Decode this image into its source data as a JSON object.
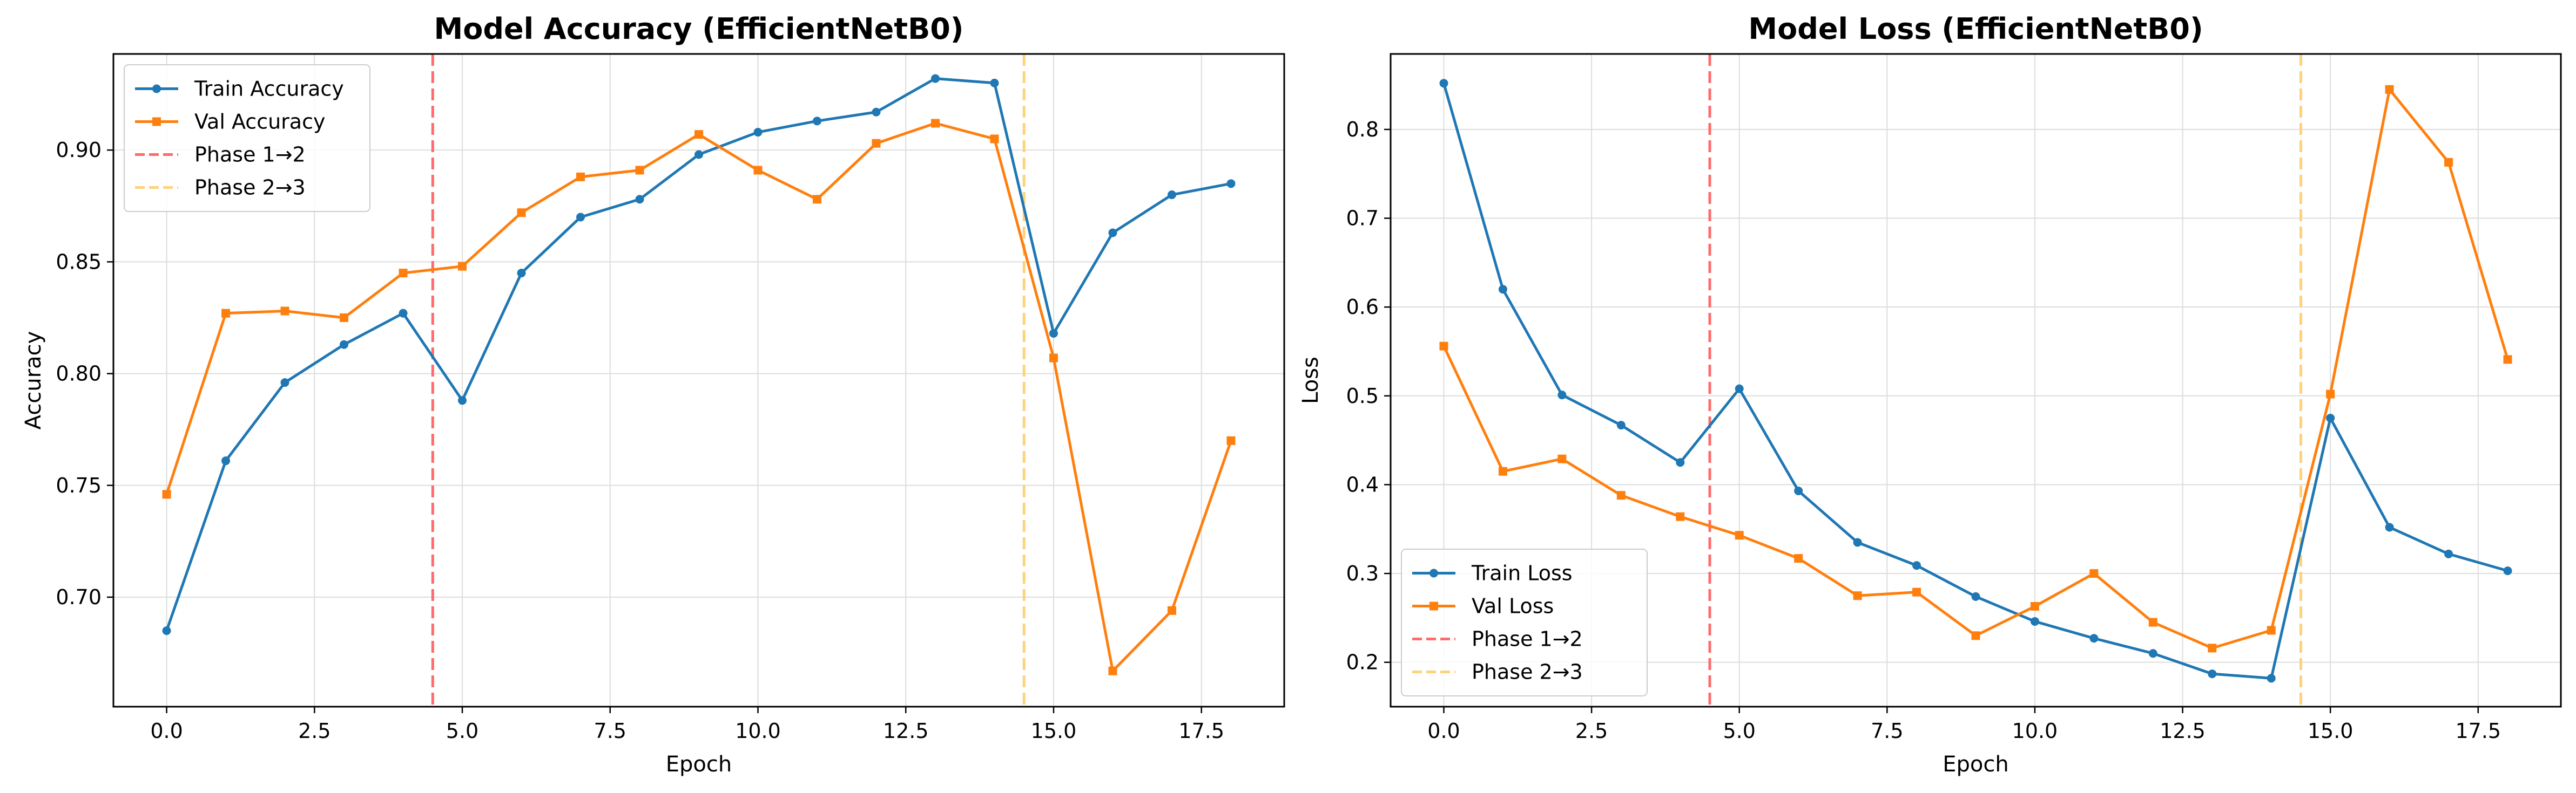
{
  "chart_data": [
    {
      "type": "line",
      "title": "Model Accuracy (EfficientNetB0)",
      "xlabel": "Epoch",
      "ylabel": "Accuracy",
      "xlim": [
        -0.9,
        18.9
      ],
      "ylim": [
        0.651,
        0.943
      ],
      "xticks": [
        0.0,
        2.5,
        5.0,
        7.5,
        10.0,
        12.5,
        15.0,
        17.5
      ],
      "xtick_labels": [
        "0.0",
        "2.5",
        "5.0",
        "7.5",
        "10.0",
        "12.5",
        "15.0",
        "17.5"
      ],
      "yticks": [
        0.7,
        0.75,
        0.8,
        0.85,
        0.9
      ],
      "ytick_labels": [
        "0.70",
        "0.75",
        "0.80",
        "0.85",
        "0.90"
      ],
      "grid": true,
      "legend_position": "upper left",
      "x": [
        0,
        1,
        2,
        3,
        4,
        5,
        6,
        7,
        8,
        9,
        10,
        11,
        12,
        13,
        14,
        15,
        16,
        17,
        18
      ],
      "series": [
        {
          "name": "Train Accuracy",
          "color": "#1f77b4",
          "marker": "circle",
          "values": [
            0.685,
            0.761,
            0.796,
            0.813,
            0.827,
            0.788,
            0.845,
            0.87,
            0.878,
            0.898,
            0.908,
            0.913,
            0.917,
            0.932,
            0.93,
            0.818,
            0.863,
            0.88,
            0.885
          ]
        },
        {
          "name": "Val Accuracy",
          "color": "#ff7f0e",
          "marker": "square",
          "values": [
            0.746,
            0.827,
            0.828,
            0.825,
            0.845,
            0.848,
            0.872,
            0.888,
            0.891,
            0.907,
            0.891,
            0.878,
            0.903,
            0.912,
            0.905,
            0.807,
            0.667,
            0.694,
            0.77
          ]
        }
      ],
      "vlines": [
        {
          "name": "Phase 1→2",
          "x": 4.5,
          "color": "#ff6b6b"
        },
        {
          "name": "Phase 2→3",
          "x": 14.5,
          "color": "#ffd27a"
        }
      ]
    },
    {
      "type": "line",
      "title": "Model Loss (EfficientNetB0)",
      "xlabel": "Epoch",
      "ylabel": "Loss",
      "xlim": [
        -0.9,
        18.9
      ],
      "ylim": [
        0.15,
        0.885
      ],
      "xticks": [
        0.0,
        2.5,
        5.0,
        7.5,
        10.0,
        12.5,
        15.0,
        17.5
      ],
      "xtick_labels": [
        "0.0",
        "2.5",
        "5.0",
        "7.5",
        "10.0",
        "12.5",
        "15.0",
        "17.5"
      ],
      "yticks": [
        0.2,
        0.3,
        0.4,
        0.5,
        0.6,
        0.7,
        0.8
      ],
      "ytick_labels": [
        "0.2",
        "0.3",
        "0.4",
        "0.5",
        "0.6",
        "0.7",
        "0.8"
      ],
      "grid": true,
      "legend_position": "lower left",
      "x": [
        0,
        1,
        2,
        3,
        4,
        5,
        6,
        7,
        8,
        9,
        10,
        11,
        12,
        13,
        14,
        15,
        16,
        17,
        18
      ],
      "series": [
        {
          "name": "Train Loss",
          "color": "#1f77b4",
          "marker": "circle",
          "values": [
            0.852,
            0.62,
            0.501,
            0.467,
            0.425,
            0.508,
            0.393,
            0.335,
            0.309,
            0.274,
            0.246,
            0.227,
            0.21,
            0.187,
            0.182,
            0.475,
            0.352,
            0.322,
            0.303
          ]
        },
        {
          "name": "Val Loss",
          "color": "#ff7f0e",
          "marker": "square",
          "values": [
            0.556,
            0.415,
            0.429,
            0.388,
            0.364,
            0.343,
            0.317,
            0.275,
            0.279,
            0.23,
            0.263,
            0.3,
            0.245,
            0.216,
            0.236,
            0.502,
            0.845,
            0.763,
            0.541
          ]
        }
      ],
      "vlines": [
        {
          "name": "Phase 1→2",
          "x": 4.5,
          "color": "#ff6b6b"
        },
        {
          "name": "Phase 2→3",
          "x": 14.5,
          "color": "#ffd27a"
        }
      ]
    }
  ]
}
